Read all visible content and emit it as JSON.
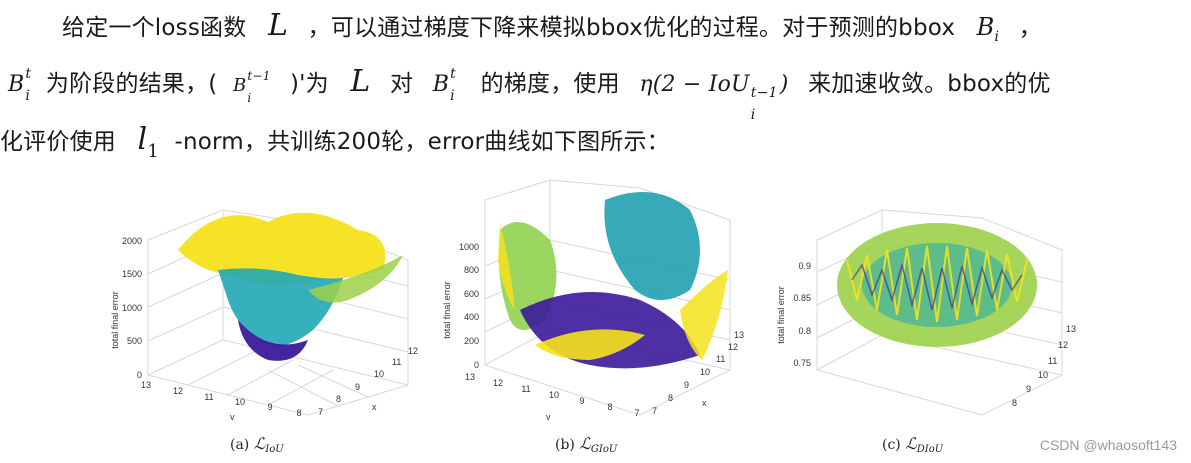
{
  "text": {
    "l1_a": "给定一个loss函数",
    "l1_L": "L",
    "l1_b": "，可以通过梯度下降来模拟bbox优化的过程。对于预测的bbox",
    "l1_B": "B",
    "l1_Bsub": "i",
    "l1_c": "，",
    "l2_B": "B",
    "l2_Bsup": "t",
    "l2_Bsub": "i",
    "l2_a": "为阶段的结果，(",
    "l2_B2": "B",
    "l2_B2sup": "t−1",
    "l2_B2sub": "i",
    "l2_b": ")'为",
    "l2_L": "L",
    "l2_c": "对",
    "l2_B3": "B",
    "l2_B3sup": "t",
    "l2_B3sub": "i",
    "l2_d": "的梯度，使用",
    "l2_eta": "η(2 − IoU",
    "l2_etasup": "t−1",
    "l2_etasub": "i",
    "l2_close": ")",
    "l2_e": "来加速收敛。bbox的优",
    "l3_a": "化评价使用",
    "l3_l": "l",
    "l3_lsub": "1",
    "l3_b": "-norm，共训练200轮，error曲线如下图所示："
  },
  "figures": [
    {
      "caption_prefix": "(a)",
      "caption_symbol": "ℒ",
      "caption_sub": "IoU",
      "zlabel": "total final error",
      "xlabel": "x",
      "ylabel": "y",
      "zticks": [
        "0",
        "500",
        "1000",
        "1500",
        "2000"
      ],
      "xticks": [
        "7",
        "8",
        "9",
        "10",
        "11",
        "12"
      ],
      "yticks": [
        "8",
        "9",
        "10",
        "11",
        "12",
        "13"
      ]
    },
    {
      "caption_prefix": "(b)",
      "caption_symbol": "ℒ",
      "caption_sub": "GIoU",
      "zlabel": "total final error",
      "xlabel": "x",
      "ylabel": "y",
      "zticks": [
        "0",
        "200",
        "400",
        "600",
        "800",
        "1000"
      ],
      "xticks": [
        "7",
        "8",
        "9",
        "10",
        "11",
        "12",
        "13"
      ],
      "yticks": [
        "7",
        "8",
        "9",
        "10",
        "11",
        "12",
        "13"
      ]
    },
    {
      "caption_prefix": "(c)",
      "caption_symbol": "ℒ",
      "caption_sub": "DIoU",
      "zlabel": "total final error",
      "xlabel": "",
      "ylabel": "",
      "zticks": [
        "0.75",
        "0.8",
        "0.85",
        "0.9"
      ],
      "xticks": [
        "8",
        "9",
        "10",
        "11",
        "12",
        "13"
      ],
      "yticks": []
    }
  ],
  "watermark": "CSDN @whaosoft143",
  "colors": {
    "low": "#3b1a9a",
    "mid": "#1fa7b5",
    "high": "#f5e21b"
  }
}
